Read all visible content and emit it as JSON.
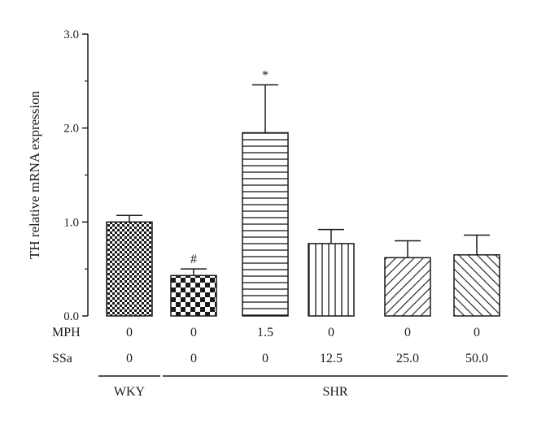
{
  "chart_data": {
    "type": "bar",
    "title": "",
    "xlabel": "",
    "ylabel": "TH relative mRNA expression",
    "ylim": [
      0,
      3.0
    ],
    "yticks": [
      "0.0",
      "1.0",
      "2.0",
      "3.0"
    ],
    "grid": false,
    "legend": "none",
    "bars": [
      {
        "value": 1.0,
        "error": 0.07,
        "annotation": "",
        "pattern": "fine-check",
        "mph": "0",
        "ssa": "0"
      },
      {
        "value": 0.43,
        "error": 0.07,
        "annotation": "#",
        "pattern": "coarse-check",
        "mph": "0",
        "ssa": "0"
      },
      {
        "value": 1.95,
        "error": 0.51,
        "annotation": "*",
        "pattern": "horizontal-lines",
        "mph": "1.5",
        "ssa": "0"
      },
      {
        "value": 0.77,
        "error": 0.15,
        "annotation": "",
        "pattern": "vertical-lines",
        "mph": "0",
        "ssa": "12.5"
      },
      {
        "value": 0.62,
        "error": 0.18,
        "annotation": "",
        "pattern": "diagonal-right",
        "mph": "0",
        "ssa": "25.0"
      },
      {
        "value": 0.65,
        "error": 0.21,
        "annotation": "",
        "pattern": "diagonal-left",
        "mph": "0",
        "ssa": "50.0"
      }
    ],
    "row_labels": {
      "mph": "MPH",
      "ssa": "SSa"
    },
    "groups": [
      {
        "label": "WKY",
        "bars": [
          0
        ]
      },
      {
        "label": "SHR",
        "bars": [
          1,
          2,
          3,
          4,
          5
        ]
      }
    ]
  }
}
